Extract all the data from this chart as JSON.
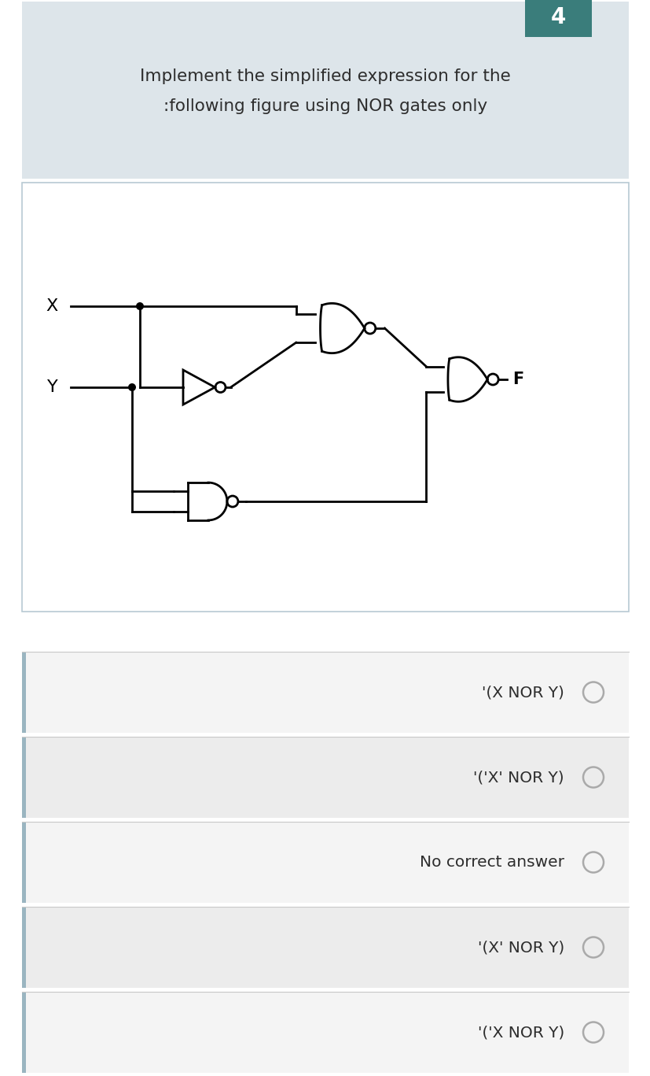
{
  "question_number": "4",
  "title_line1": "Implement the simplified expression for the",
  "title_line2": ":following figure using NOR gates only",
  "options": [
    "'('X NOR Y)",
    "'(X' NOR Y)",
    "No correct answer",
    "'('X' NOR Y)",
    "'(X NOR Y)"
  ],
  "bg_outer": "#cdd3d7",
  "bg_top_card": "#dde5ea",
  "bg_circuit": "#ffffff",
  "teal_color": "#3a7d7b",
  "text_color": "#2d2d2d",
  "border_color": "#b8cad3",
  "separator_color": "#c8c8c8",
  "radio_color": "#aaaaaa"
}
